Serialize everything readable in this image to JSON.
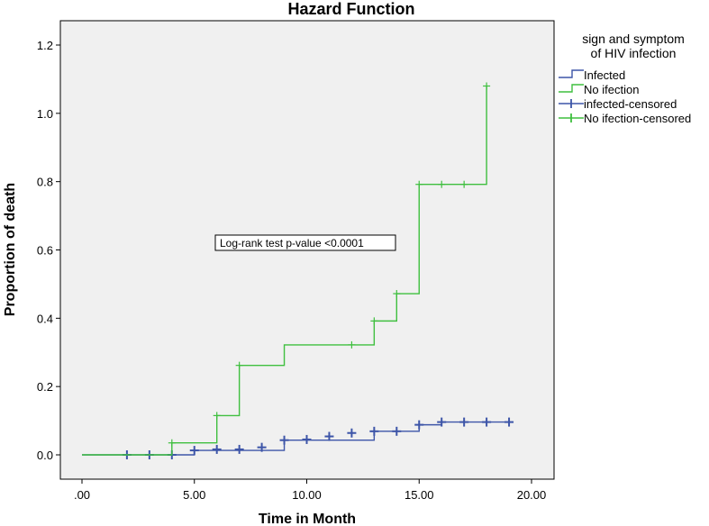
{
  "chart_data": {
    "type": "line",
    "step": true,
    "title": "Hazard Function",
    "xlabel": "Time in Month",
    "ylabel": "Proportion of death",
    "xlim": [
      0,
      20
    ],
    "ylim": [
      0,
      1.2
    ],
    "x_ticks": [
      0,
      5,
      10,
      15,
      20
    ],
    "x_tick_labels": [
      ".00",
      "5.00",
      "10.00",
      "15.00",
      "20.00"
    ],
    "y_ticks": [
      0,
      0.2,
      0.4,
      0.6,
      0.8,
      1.0,
      1.2
    ],
    "y_tick_labels": [
      "0.0",
      "0.2",
      "0.4",
      "0.6",
      "0.8",
      "1.0",
      "1.2"
    ],
    "grid": false,
    "plot_background": "#f0f0f0",
    "legend": {
      "title_lines": [
        "sign and symptom",
        "of HIV infection"
      ],
      "placement": "top-right-outside",
      "entries": [
        {
          "label": "Infected",
          "kind": "step",
          "color": "#3d55a8"
        },
        {
          "label": "No ifection",
          "kind": "step",
          "color": "#3fbf3f"
        },
        {
          "label": "infected-censored",
          "kind": "censor",
          "color": "#3d55a8"
        },
        {
          "label": "No ifection-censored",
          "kind": "censor",
          "color": "#3fbf3f"
        }
      ]
    },
    "annotation": "Log-rank test p-value <0.0001",
    "series": [
      {
        "name": "Infected",
        "color": "#3d55a8",
        "steps": [
          [
            0,
            0
          ],
          [
            5,
            0.013
          ],
          [
            9,
            0.043
          ],
          [
            13,
            0.069
          ],
          [
            15,
            0.088
          ],
          [
            16,
            0.096
          ],
          [
            19,
            0.096
          ]
        ],
        "censored": [
          [
            2,
            0
          ],
          [
            3,
            0
          ],
          [
            4,
            0
          ],
          [
            5,
            0.013
          ],
          [
            6,
            0.016
          ],
          [
            7,
            0.016
          ],
          [
            8,
            0.022
          ],
          [
            9,
            0.043
          ],
          [
            10,
            0.045
          ],
          [
            11,
            0.054
          ],
          [
            12,
            0.064
          ],
          [
            13,
            0.069
          ],
          [
            14,
            0.069
          ],
          [
            15,
            0.088
          ],
          [
            16,
            0.096
          ],
          [
            17,
            0.096
          ],
          [
            18,
            0.096
          ],
          [
            19,
            0.096
          ]
        ]
      },
      {
        "name": "No ifection",
        "color": "#3fbf3f",
        "steps": [
          [
            0,
            0
          ],
          [
            4,
            0.035
          ],
          [
            6,
            0.115
          ],
          [
            7,
            0.262
          ],
          [
            9,
            0.322
          ],
          [
            13,
            0.392
          ],
          [
            14,
            0.472
          ],
          [
            15,
            0.792
          ],
          [
            18,
            1.08
          ]
        ],
        "censored": [
          [
            4,
            0.035
          ],
          [
            6,
            0.115
          ],
          [
            7,
            0.262
          ],
          [
            12,
            0.322
          ],
          [
            13,
            0.392
          ],
          [
            14,
            0.472
          ],
          [
            15,
            0.792
          ],
          [
            16,
            0.792
          ],
          [
            17,
            0.792
          ],
          [
            18,
            1.08
          ]
        ]
      }
    ]
  }
}
